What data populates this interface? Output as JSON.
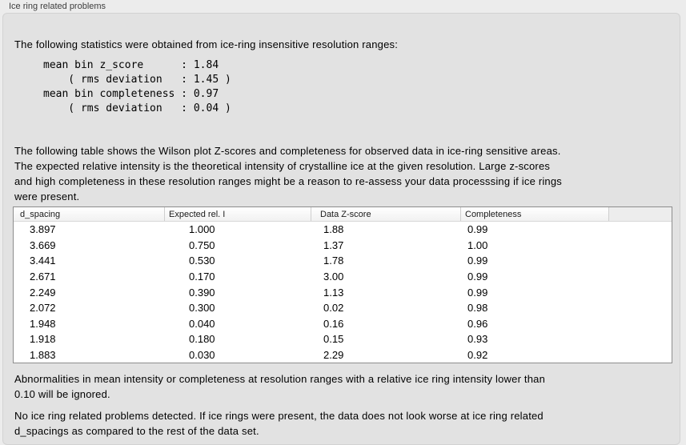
{
  "panel": {
    "title": "Ice ring related problems"
  },
  "stats": {
    "intro": "The following statistics were obtained from ice-ring insensitive resolution ranges:",
    "block": "mean bin z_score      : 1.84\n    ( rms deviation   : 1.45 )\nmean bin completeness : 0.97\n    ( rms deviation   : 0.04 )"
  },
  "table_description": "The following table shows the Wilson plot Z-scores and completeness for observed data in ice-ring sensitive areas.\nThe expected relative intensity is the theoretical intensity of crystalline ice at the given resolution. Large z-scores\nand high completeness in these resolution ranges might be a reason to re-assess your data processsing if ice rings\nwere present.",
  "table": {
    "columns": [
      "d_spacing",
      "Expected rel. I",
      "Data Z-score",
      "Completeness"
    ],
    "rows": [
      [
        "3.897",
        "1.000",
        "1.88",
        "0.99"
      ],
      [
        "3.669",
        "0.750",
        "1.37",
        "1.00"
      ],
      [
        "3.441",
        "0.530",
        "1.78",
        "0.99"
      ],
      [
        "2.671",
        "0.170",
        "3.00",
        "0.99"
      ],
      [
        "2.249",
        "0.390",
        "1.13",
        "0.99"
      ],
      [
        "2.072",
        "0.300",
        "0.02",
        "0.98"
      ],
      [
        "1.948",
        "0.040",
        "0.16",
        "0.96"
      ],
      [
        "1.918",
        "0.180",
        "0.15",
        "0.93"
      ],
      [
        "1.883",
        "0.030",
        "2.29",
        "0.92"
      ]
    ]
  },
  "notes": {
    "ignore_threshold": "Abnormalities in mean intensity or completeness at resolution ranges with a relative ice ring intensity lower than\n0.10 will be ignored.",
    "conclusion": "No ice ring related problems detected. If ice rings were present, the data does not look worse at ice ring related\nd_spacings as compared to the rest of the data set."
  },
  "colors": {
    "outer_bg": "#ececec",
    "panel_bg": "#e2e2e2",
    "panel_border": "#d2d2d2",
    "table_border": "#8d8d8d"
  }
}
